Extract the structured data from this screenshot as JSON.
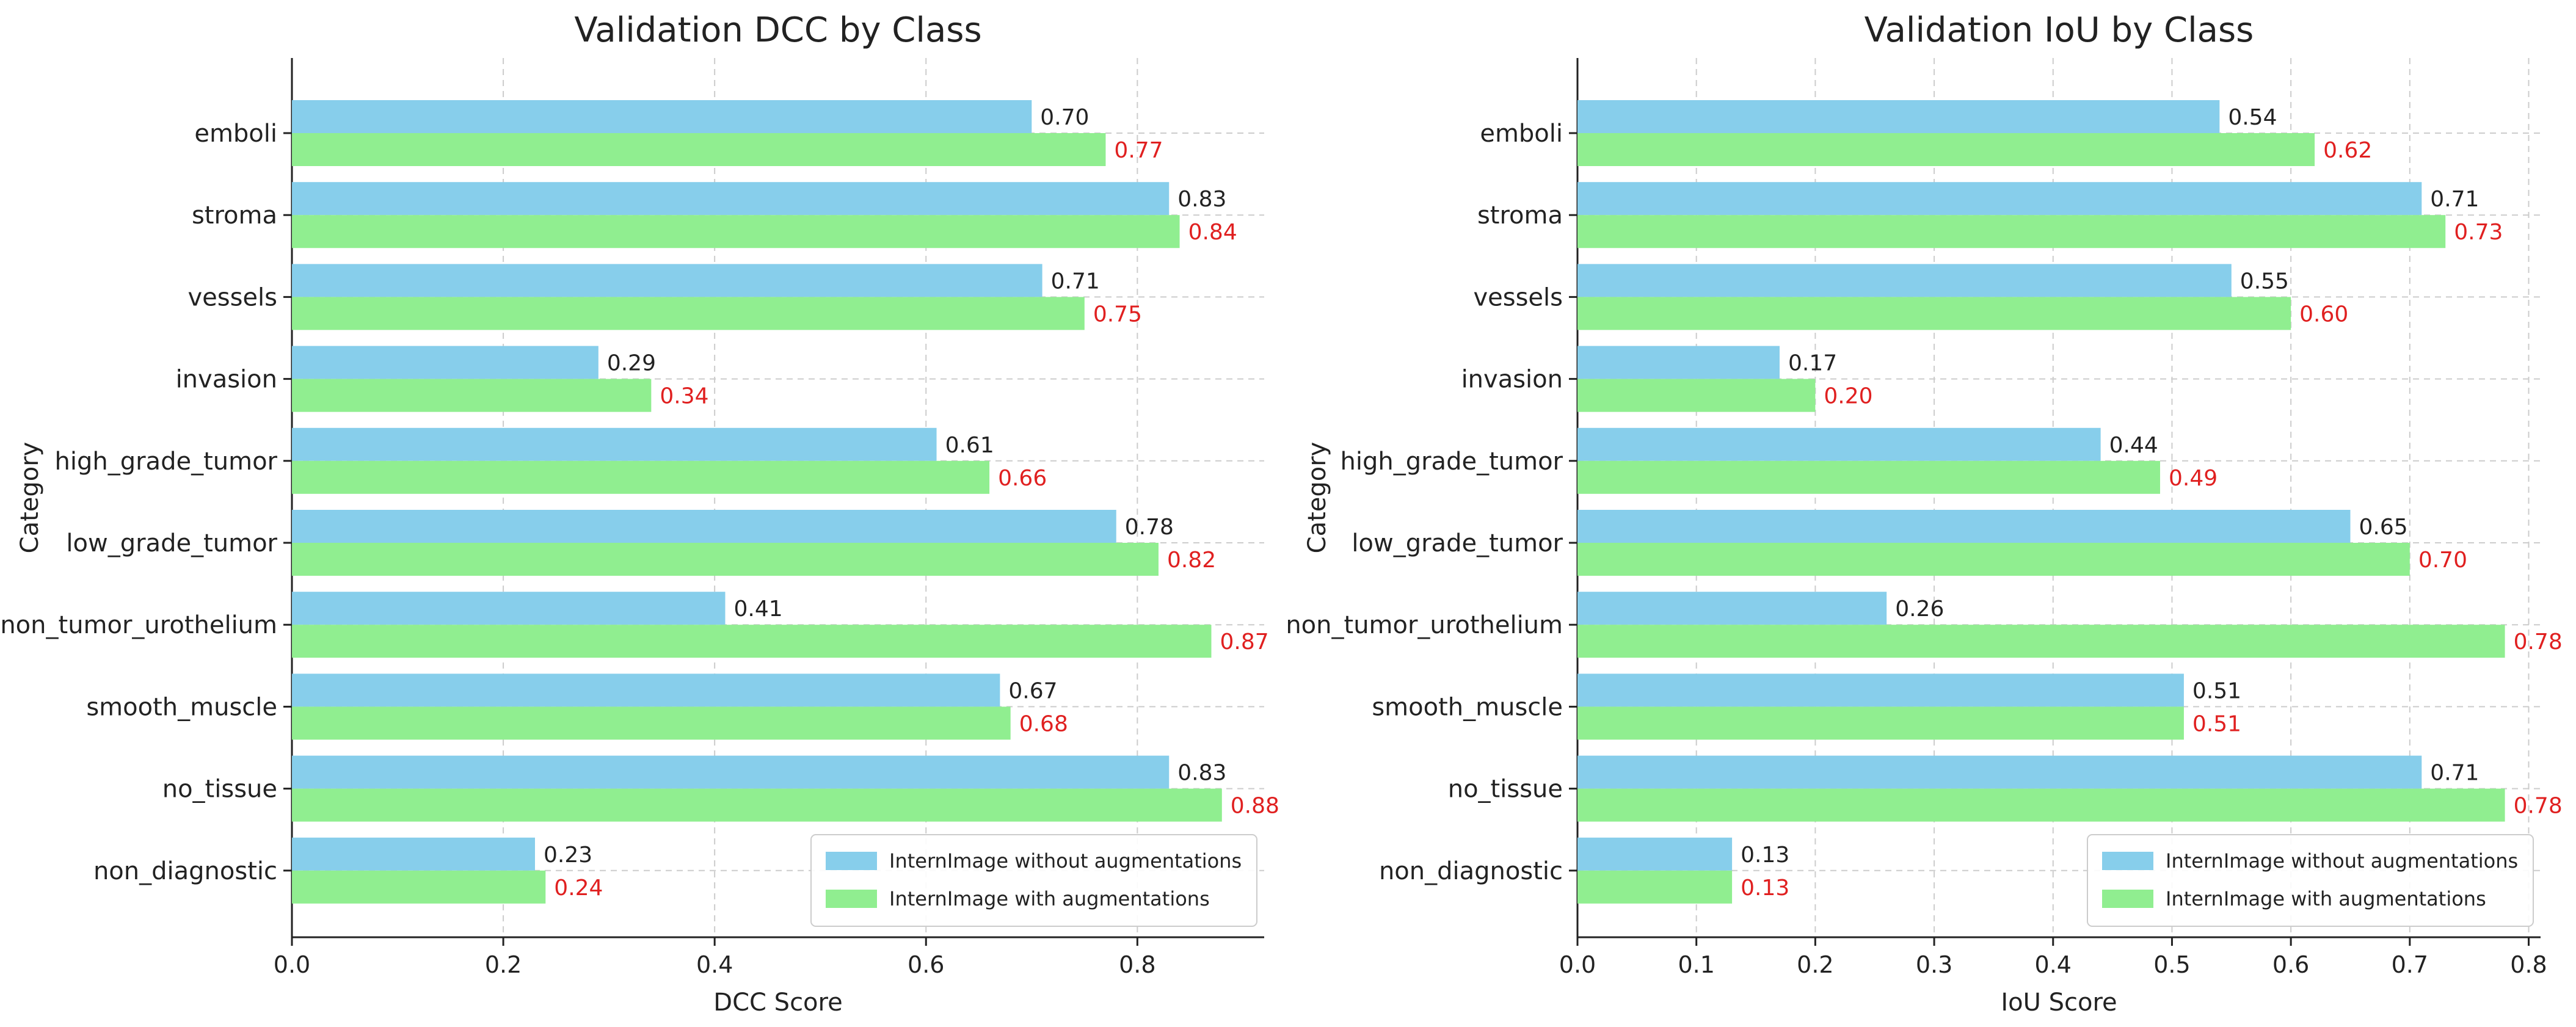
{
  "chart_data": [
    {
      "type": "bar",
      "orientation": "horizontal",
      "title": "Validation DCC by Class",
      "xlabel": "DCC Score",
      "ylabel": "Category",
      "xlim": [
        0,
        0.92
      ],
      "xticks": [
        0.0,
        0.2,
        0.4,
        0.6,
        0.8
      ],
      "xtick_labels": [
        "0.0",
        "0.2",
        "0.4",
        "0.6",
        "0.8"
      ],
      "grid": true,
      "legend_position": "bottom-right",
      "categories": [
        "emboli",
        "stroma",
        "vessels",
        "invasion",
        "high_grade_tumor",
        "low_grade_tumor",
        "non_tumor_urothelium",
        "smooth_muscle",
        "no_tissue",
        "non_diagnostic"
      ],
      "series": [
        {
          "name": "InternImage without augmentations",
          "color": "#87CEEB",
          "values": [
            0.7,
            0.83,
            0.71,
            0.29,
            0.61,
            0.78,
            0.41,
            0.67,
            0.83,
            0.23
          ],
          "labels": [
            "0.70",
            "0.83",
            "0.71",
            "0.29",
            "0.61",
            "0.78",
            "0.41",
            "0.67",
            "0.83",
            "0.23"
          ]
        },
        {
          "name": "InternImage with augmentations",
          "color": "#90EE90",
          "values": [
            0.77,
            0.84,
            0.75,
            0.34,
            0.66,
            0.82,
            0.87,
            0.68,
            0.88,
            0.24
          ],
          "labels": [
            "0.77",
            "0.84",
            "0.75",
            "0.34",
            "0.66",
            "0.82",
            "0.87",
            "0.68",
            "0.88",
            "0.24"
          ]
        }
      ]
    },
    {
      "type": "bar",
      "orientation": "horizontal",
      "title": "Validation IoU by Class",
      "xlabel": "IoU Score",
      "ylabel": "Category",
      "xlim": [
        0,
        0.81
      ],
      "xticks": [
        0.0,
        0.1,
        0.2,
        0.3,
        0.4,
        0.5,
        0.6,
        0.7,
        0.8
      ],
      "xtick_labels": [
        "0.0",
        "0.1",
        "0.2",
        "0.3",
        "0.4",
        "0.5",
        "0.6",
        "0.7",
        "0.8"
      ],
      "grid": true,
      "legend_position": "bottom-right",
      "categories": [
        "emboli",
        "stroma",
        "vessels",
        "invasion",
        "high_grade_tumor",
        "low_grade_tumor",
        "non_tumor_urothelium",
        "smooth_muscle",
        "no_tissue",
        "non_diagnostic"
      ],
      "series": [
        {
          "name": "InternImage without augmentations",
          "color": "#87CEEB",
          "values": [
            0.54,
            0.71,
            0.55,
            0.17,
            0.44,
            0.65,
            0.26,
            0.51,
            0.71,
            0.13
          ],
          "labels": [
            "0.54",
            "0.71",
            "0.55",
            "0.17",
            "0.44",
            "0.65",
            "0.26",
            "0.51",
            "0.71",
            "0.13"
          ]
        },
        {
          "name": "InternImage with augmentations",
          "color": "#90EE90",
          "values": [
            0.62,
            0.73,
            0.6,
            0.2,
            0.49,
            0.7,
            0.78,
            0.51,
            0.78,
            0.13
          ],
          "labels": [
            "0.62",
            "0.73",
            "0.60",
            "0.20",
            "0.49",
            "0.70",
            "0.78",
            "0.51",
            "0.78",
            "0.13"
          ]
        }
      ]
    }
  ]
}
